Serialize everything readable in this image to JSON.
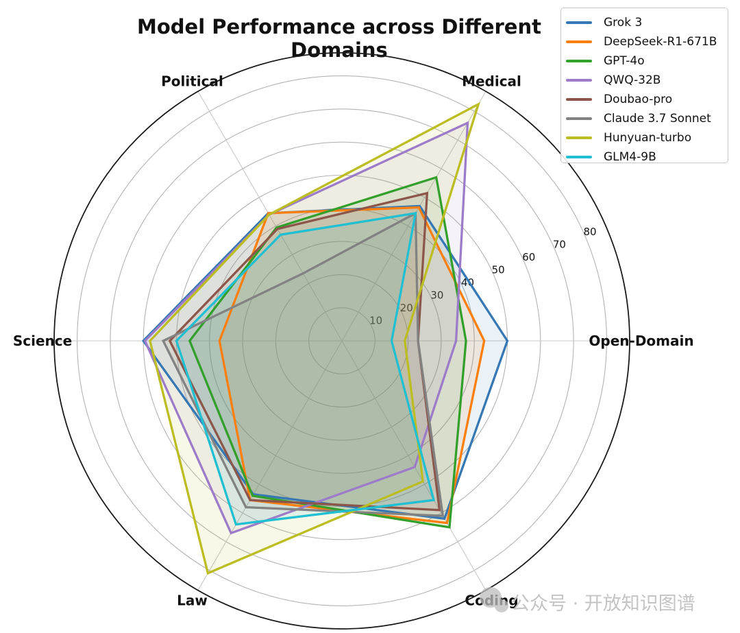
{
  "title": "Model Performance across Different Domains",
  "watermark": {
    "text": "公众号 · 开放知识图谱",
    "icon": "chat-bubbles-logo"
  },
  "legend": {
    "position": "upper-right",
    "entries": [
      "Grok 3",
      "DeepSeek-R1-671B",
      "GPT-4o",
      "QWQ-32B",
      "Doubao-pro",
      "Claude 3.7 Sonnet",
      "Hunyuan-turbo",
      "GLM4-9B"
    ]
  },
  "chart_data": {
    "type": "line",
    "variant": "radar-polar",
    "title": "Model Performance across Different Domains",
    "categories": [
      "Open-Domain",
      "Medical",
      "Political",
      "Science",
      "Law",
      "Coding"
    ],
    "axis_angles_deg": [
      0,
      60,
      120,
      180,
      240,
      300
    ],
    "r_ticks": [
      10,
      20,
      30,
      40,
      50,
      60,
      70,
      80
    ],
    "r_tick_label_angle_deg": 22.5,
    "r_axis_max": 87,
    "grid": true,
    "legend_position": "upper right",
    "fill_alpha": 0.1,
    "series": [
      {
        "name": "Grok 3",
        "color": "#3578b4",
        "values": [
          50,
          47,
          44.5,
          60,
          53.5,
          62
        ]
      },
      {
        "name": "DeepSeek-R1-671B",
        "color": "#ff7f0e",
        "values": [
          43,
          46.5,
          44.5,
          37,
          55.5,
          63.5
        ]
      },
      {
        "name": "GPT-4o",
        "color": "#33a02c",
        "values": [
          37.5,
          57,
          39.5,
          46,
          54,
          65
        ]
      },
      {
        "name": "QWQ-32B",
        "color": "#9c7cc9",
        "values": [
          34.5,
          76,
          44,
          59.5,
          67,
          44
        ]
      },
      {
        "name": "Doubao-pro",
        "color": "#8c564b",
        "values": [
          23,
          51.5,
          39,
          52,
          55.5,
          59
        ]
      },
      {
        "name": "Claude 3.7 Sonnet",
        "color": "#828282",
        "values": [
          23,
          44.5,
          23.5,
          54,
          58,
          61
        ]
      },
      {
        "name": "Hunyuan-turbo",
        "color": "#bcbd22",
        "values": [
          19,
          82.5,
          44,
          58,
          81,
          49
        ]
      },
      {
        "name": "GLM4-9B",
        "color": "#20bfd1",
        "values": [
          15,
          44.5,
          37,
          50,
          64,
          55.5
        ]
      }
    ]
  }
}
